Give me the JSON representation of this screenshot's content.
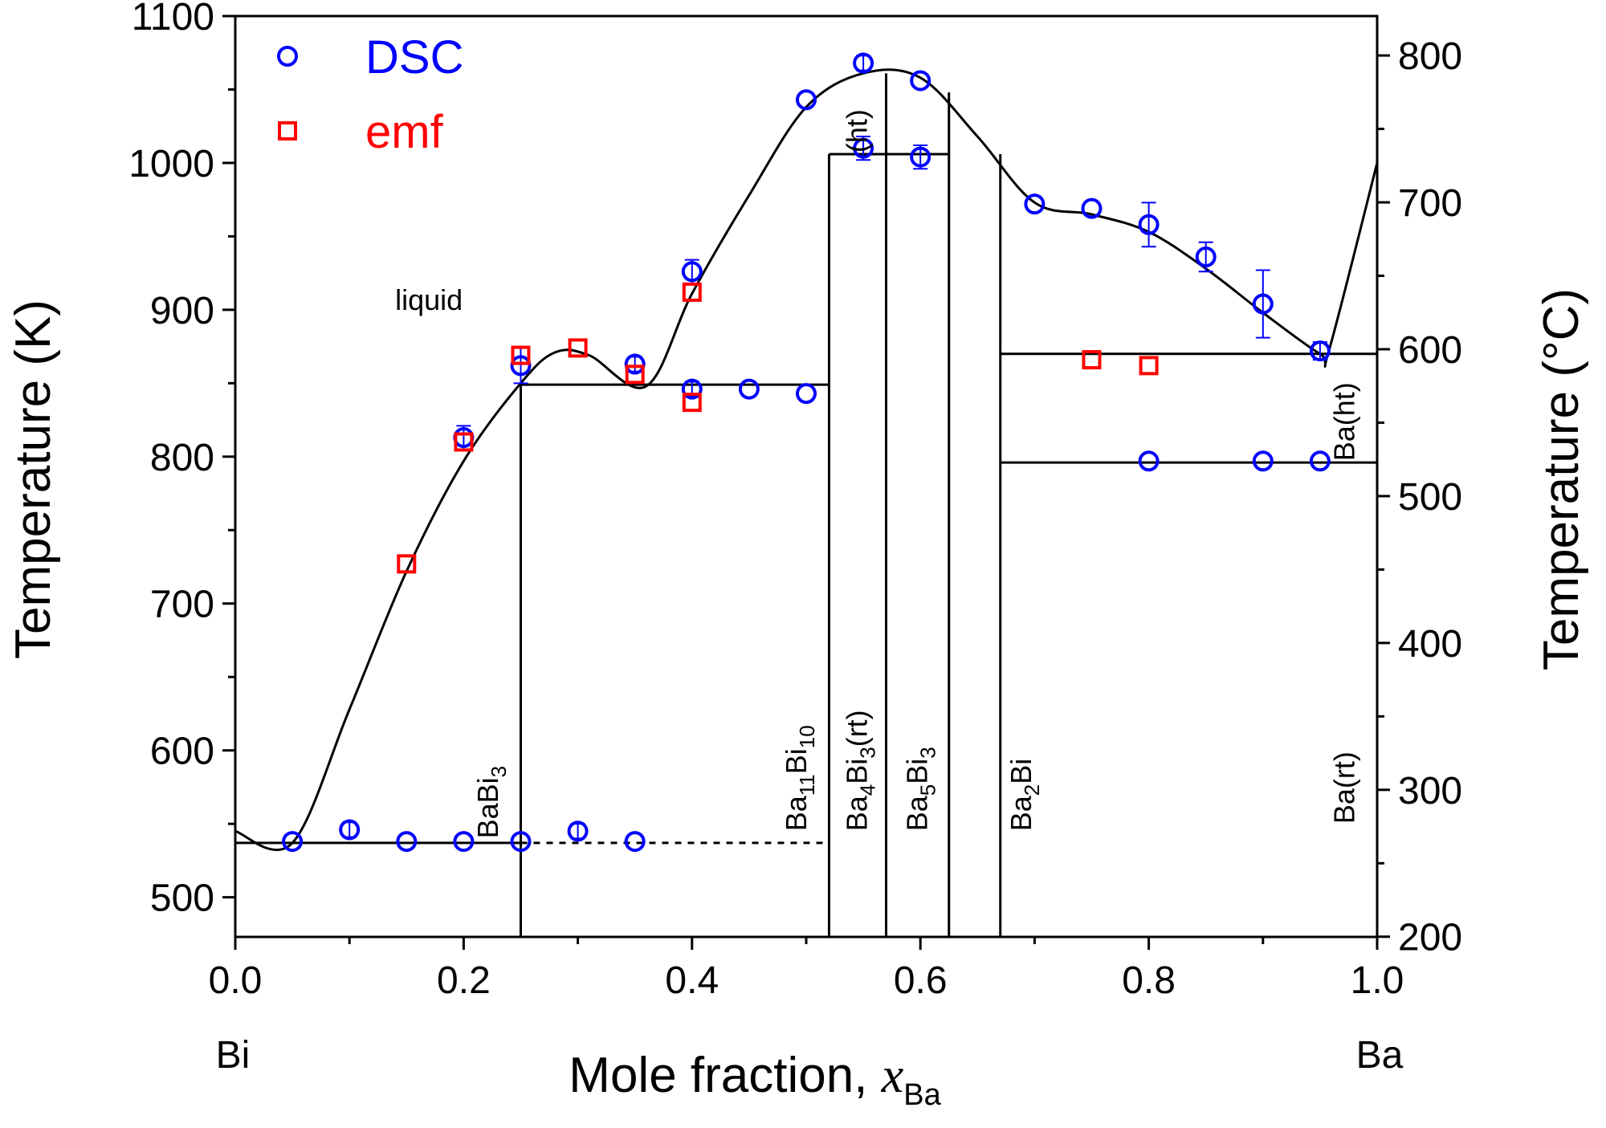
{
  "chart_data": {
    "type": "scatter",
    "xlabel": "Mole fraction, ",
    "xlabel_var": "x",
    "xlabel_sub": "Ba",
    "ylabel_left": "Temperature (K)",
    "ylabel_right": "Temperature (°C)",
    "xlim": [
      0.0,
      1.0
    ],
    "ylim_left": [
      473,
      1100
    ],
    "ylim_right": [
      200,
      800
    ],
    "x_ticks": [
      "0.0",
      "0.2",
      "0.4",
      "0.6",
      "0.8",
      "1.0"
    ],
    "y_ticks_left": [
      "500",
      "600",
      "700",
      "800",
      "900",
      "1000",
      "1100"
    ],
    "y_ticks_right": [
      "200",
      "300",
      "400",
      "500",
      "600",
      "700",
      "800"
    ],
    "end_labels": {
      "left": "Bi",
      "right": "Ba"
    },
    "legend": {
      "placement": "top-left",
      "entries": [
        {
          "label": "DSC",
          "marker": "circle",
          "color": "#0000ff"
        },
        {
          "label": "emf",
          "marker": "square",
          "color": "#ff0000"
        }
      ]
    },
    "series": [
      {
        "name": "DSC",
        "marker": "circle",
        "color": "#0000ff",
        "points": [
          {
            "x": 0.05,
            "y": 538,
            "err": 0
          },
          {
            "x": 0.1,
            "y": 546,
            "err": 5
          },
          {
            "x": 0.15,
            "y": 538,
            "err": 0
          },
          {
            "x": 0.2,
            "y": 538,
            "err": 0
          },
          {
            "x": 0.25,
            "y": 538,
            "err": 0
          },
          {
            "x": 0.3,
            "y": 545,
            "err": 5
          },
          {
            "x": 0.35,
            "y": 538,
            "err": 0
          },
          {
            "x": 0.2,
            "y": 813,
            "err": 8
          },
          {
            "x": 0.25,
            "y": 862,
            "err": 12
          },
          {
            "x": 0.35,
            "y": 863,
            "err": 5
          },
          {
            "x": 0.4,
            "y": 926,
            "err": 8
          },
          {
            "x": 0.4,
            "y": 846,
            "err": 5
          },
          {
            "x": 0.45,
            "y": 846,
            "err": 0
          },
          {
            "x": 0.5,
            "y": 843,
            "err": 0
          },
          {
            "x": 0.5,
            "y": 1043,
            "err": 0
          },
          {
            "x": 0.55,
            "y": 1068,
            "err": 5
          },
          {
            "x": 0.55,
            "y": 1010,
            "err": 8
          },
          {
            "x": 0.6,
            "y": 1056,
            "err": 0
          },
          {
            "x": 0.6,
            "y": 1004,
            "err": 8
          },
          {
            "x": 0.7,
            "y": 972,
            "err": 0
          },
          {
            "x": 0.75,
            "y": 969,
            "err": 0
          },
          {
            "x": 0.8,
            "y": 958,
            "err": 15
          },
          {
            "x": 0.85,
            "y": 936,
            "err": 10
          },
          {
            "x": 0.9,
            "y": 904,
            "err": 23
          },
          {
            "x": 0.95,
            "y": 872,
            "err": 6
          },
          {
            "x": 0.8,
            "y": 797,
            "err": 0
          },
          {
            "x": 0.9,
            "y": 797,
            "err": 0
          },
          {
            "x": 0.95,
            "y": 797,
            "err": 0
          }
        ]
      },
      {
        "name": "emf",
        "marker": "square",
        "color": "#ff0000",
        "points": [
          {
            "x": 0.15,
            "y": 727
          },
          {
            "x": 0.2,
            "y": 810
          },
          {
            "x": 0.25,
            "y": 869
          },
          {
            "x": 0.3,
            "y": 874
          },
          {
            "x": 0.35,
            "y": 856
          },
          {
            "x": 0.4,
            "y": 912
          },
          {
            "x": 0.4,
            "y": 837
          },
          {
            "x": 0.75,
            "y": 866
          },
          {
            "x": 0.8,
            "y": 862
          }
        ]
      }
    ],
    "phase_diagram": {
      "liquidus": [
        [
          0.0,
          545
        ],
        [
          0.05,
          537
        ],
        [
          0.1,
          628
        ],
        [
          0.15,
          722
        ],
        [
          0.2,
          797
        ],
        [
          0.25,
          850
        ],
        [
          0.28,
          871
        ],
        [
          0.31,
          869
        ],
        [
          0.36,
          848
        ],
        [
          0.4,
          911
        ],
        [
          0.45,
          978
        ],
        [
          0.5,
          1038
        ],
        [
          0.55,
          1061
        ],
        [
          0.6,
          1058
        ],
        [
          0.65,
          1018
        ],
        [
          0.7,
          973
        ],
        [
          0.75,
          965
        ],
        [
          0.8,
          953
        ],
        [
          0.85,
          928
        ],
        [
          0.9,
          898
        ],
        [
          0.95,
          870
        ],
        [
          0.958,
          873
        ],
        [
          1.0,
          1000
        ]
      ],
      "eutectic_solid": {
        "y": 537,
        "x_from": 0.0,
        "x_to": 0.25
      },
      "eutectic_dashed": {
        "y": 537,
        "x_from": 0.25,
        "x_to": 0.52
      },
      "horizontals": [
        {
          "y": 849,
          "x_from": 0.25,
          "x_to": 0.52
        },
        {
          "y": 1006,
          "x_from": 0.52,
          "x_to": 0.625
        },
        {
          "y": 870,
          "x_from": 0.67,
          "x_to": 1.0
        },
        {
          "y": 796,
          "x_from": 0.67,
          "x_to": 1.0
        }
      ],
      "verticals": [
        {
          "x": 0.25,
          "y_from": 473,
          "y_to": 849
        },
        {
          "x": 0.52,
          "y_from": 473,
          "y_to": 1006
        },
        {
          "x": 0.57,
          "y_from": 473,
          "y_to": 1061
        },
        {
          "x": 0.625,
          "y_from": 473,
          "y_to": 1048
        },
        {
          "x": 0.67,
          "y_from": 473,
          "y_to": 1006
        }
      ]
    },
    "annotations": [
      {
        "id": "liquid",
        "text": "liquid",
        "x": 0.14,
        "y": 900
      },
      {
        "id": "babi3",
        "parts": [
          [
            "BaBi",
            ""
          ],
          [
            "3",
            "sub"
          ]
        ],
        "x": 0.23,
        "y": 540
      },
      {
        "id": "ba11bi10",
        "parts": [
          [
            "Ba",
            ""
          ],
          [
            "11",
            "sub"
          ],
          [
            "Bi",
            ""
          ],
          [
            "10",
            "sub"
          ]
        ],
        "x": 0.5,
        "y": 545
      },
      {
        "id": "ba4bi3rt",
        "parts": [
          [
            "Ba",
            ""
          ],
          [
            "4",
            "sub"
          ],
          [
            "Bi",
            ""
          ],
          [
            "3",
            "sub"
          ],
          [
            "(rt)",
            ""
          ]
        ],
        "x": 0.553,
        "y": 545
      },
      {
        "id": "ht",
        "parts": [
          [
            "(ht)",
            ""
          ]
        ],
        "x": 0.553,
        "y": 1007
      },
      {
        "id": "ba5bi3",
        "parts": [
          [
            "Ba",
            ""
          ],
          [
            "5",
            "sub"
          ],
          [
            "Bi",
            ""
          ],
          [
            "3",
            "sub"
          ]
        ],
        "x": 0.606,
        "y": 545
      },
      {
        "id": "ba2bi",
        "parts": [
          [
            "Ba",
            ""
          ],
          [
            "2",
            "sub"
          ],
          [
            "Bi",
            ""
          ]
        ],
        "x": 0.697,
        "y": 545
      },
      {
        "id": "ba_ht",
        "parts": [
          [
            "Ba(ht)",
            ""
          ]
        ],
        "x": 0.98,
        "y": 797
      },
      {
        "id": "ba_rt",
        "parts": [
          [
            "Ba(rt)",
            ""
          ]
        ],
        "x": 0.98,
        "y": 550
      }
    ]
  }
}
